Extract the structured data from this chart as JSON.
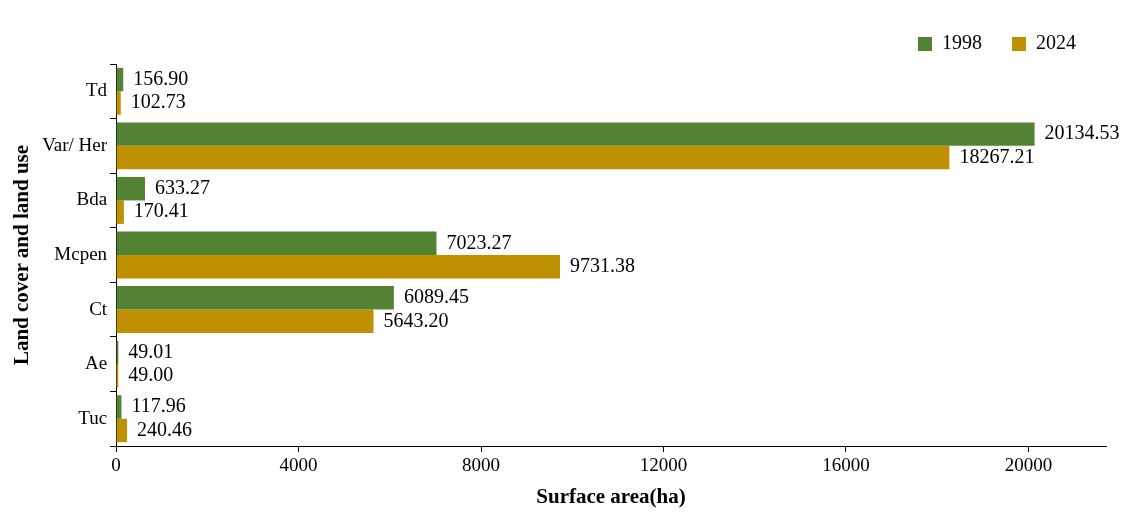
{
  "chart_data": {
    "type": "bar",
    "orientation": "horizontal",
    "xlabel": "Surface area(ha)",
    "ylabel": "Land cover and land use",
    "categories": [
      "Td",
      "Var/ Her",
      "Bda",
      "Mcpen",
      "Ct",
      "Ae",
      "Tuc"
    ],
    "series": [
      {
        "name": "1998",
        "color": "#548235",
        "values": [
          156.9,
          20134.53,
          633.27,
          7023.27,
          6089.45,
          49.01,
          117.96
        ],
        "value_labels": [
          "156.90",
          "20134.53",
          "633.27",
          "7023.27",
          "6089.45",
          "49.01",
          "117.96"
        ]
      },
      {
        "name": "2024",
        "color": "#bf9000",
        "values": [
          102.73,
          18267.21,
          170.41,
          9731.38,
          5643.2,
          49.0,
          240.46
        ],
        "value_labels": [
          "102.73",
          "18267.21",
          "170.41",
          "9731.38",
          "5643.20",
          "49.00",
          "240.46"
        ]
      }
    ],
    "xlim": [
      0,
      21700
    ],
    "xticks": [
      0,
      4000,
      8000,
      12000,
      16000,
      20000
    ],
    "grid": false,
    "legend": "top right"
  }
}
